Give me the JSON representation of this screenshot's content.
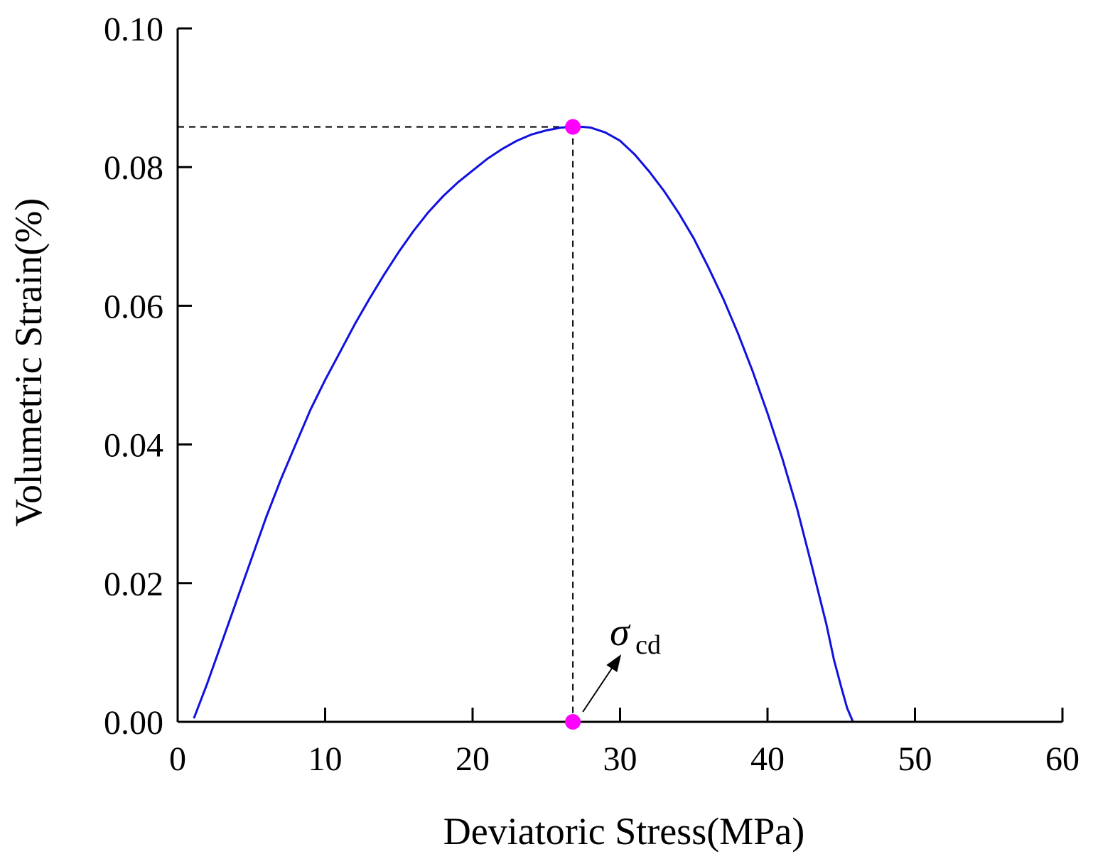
{
  "chart_data": {
    "type": "line",
    "title": "",
    "xlabel": "Deviatoric Stress(MPa)",
    "ylabel": "Volumetric Strain(%)",
    "xlim": [
      0,
      60
    ],
    "ylim": [
      0,
      0.1
    ],
    "xticks": [
      0,
      10,
      20,
      30,
      40,
      50,
      60
    ],
    "xtick_labels": [
      "0",
      "10",
      "20",
      "30",
      "40",
      "50",
      "60"
    ],
    "yticks": [
      0,
      0.02,
      0.04,
      0.06,
      0.08,
      0.1
    ],
    "ytick_labels": [
      "0.00",
      "0.02",
      "0.04",
      "0.06",
      "0.08",
      "0.10"
    ],
    "grid": false,
    "series": [
      {
        "name": "Volumetric strain",
        "color": "#1010e0",
        "x": [
          1.1,
          2.0,
          3.0,
          4.0,
          5.0,
          6.0,
          7.0,
          8.0,
          9.0,
          10.0,
          11.0,
          12.0,
          13.0,
          14.0,
          15.0,
          16.0,
          17.0,
          18.0,
          19.0,
          20.0,
          21.0,
          22.0,
          23.0,
          24.0,
          25.0,
          26.0,
          26.8,
          27.5,
          28.0,
          29.0,
          30.0,
          31.0,
          32.0,
          33.0,
          34.0,
          35.0,
          36.0,
          37.0,
          38.0,
          39.0,
          40.0,
          41.0,
          42.0,
          43.0,
          44.0,
          44.5,
          45.0,
          45.4,
          45.8
        ],
        "y": [
          0.0005,
          0.0055,
          0.0115,
          0.0175,
          0.0235,
          0.0295,
          0.035,
          0.04,
          0.045,
          0.0493,
          0.0533,
          0.0573,
          0.061,
          0.0645,
          0.0678,
          0.0708,
          0.0735,
          0.0758,
          0.0778,
          0.0795,
          0.0812,
          0.0826,
          0.0838,
          0.0847,
          0.0853,
          0.0857,
          0.0858,
          0.0858,
          0.0857,
          0.085,
          0.0838,
          0.0818,
          0.0793,
          0.0765,
          0.0733,
          0.0697,
          0.0655,
          0.061,
          0.056,
          0.0505,
          0.0445,
          0.038,
          0.0308,
          0.0225,
          0.014,
          0.009,
          0.005,
          0.002,
          0.0
        ]
      }
    ],
    "markers": [
      {
        "name": "peak",
        "x": 26.8,
        "y": 0.0858,
        "color": "#ff00ff"
      },
      {
        "name": "sigma-cd",
        "x": 26.8,
        "y": 0.0,
        "color": "#ff00ff"
      }
    ],
    "reference_lines": {
      "x": 26.8,
      "y": 0.0858,
      "style": "dashed"
    },
    "annotation": {
      "text": "σ",
      "subscript": "cd",
      "points_to": "sigma-cd"
    }
  }
}
